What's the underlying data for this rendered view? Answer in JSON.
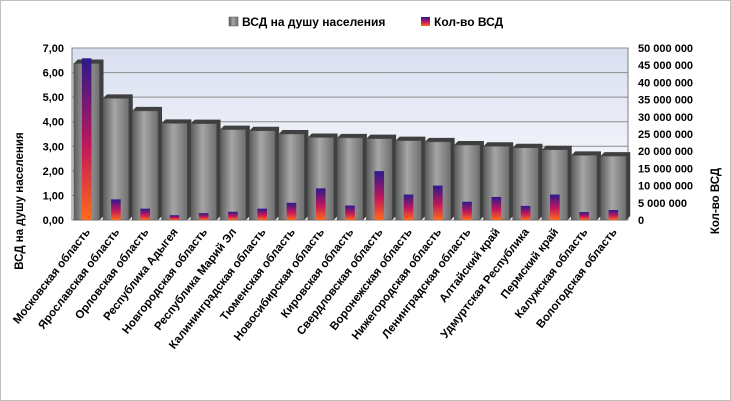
{
  "chart_data": {
    "type": "bar",
    "categories": [
      "Московская область",
      "Ярославская область",
      "Орловская область",
      "Республика Адыгея",
      "Новгородская область",
      "Республика Марий Эл",
      "Калининградская область",
      "Тюменская область",
      "Новосибирская область",
      "Кировская область",
      "Свердловская область",
      "Воронежская область",
      "Нижегородская область",
      "Ленинградская область",
      "Алтайский край",
      "Удмуртская Республика",
      "Пермский край",
      "Калужская область",
      "Вологодская область"
    ],
    "series": [
      {
        "name": "ВСД на душу населения",
        "axis": "left",
        "color": "#808080",
        "values": [
          6.37,
          4.95,
          4.44,
          3.93,
          3.92,
          3.68,
          3.63,
          3.5,
          3.36,
          3.34,
          3.31,
          3.23,
          3.18,
          3.05,
          3.0,
          2.94,
          2.86,
          2.63,
          2.6
        ]
      },
      {
        "name": "Кол-во ВСД",
        "axis": "right",
        "color": "#3b1e8f",
        "values": [
          47000000,
          6000000,
          3300000,
          1400000,
          2000000,
          2400000,
          3300000,
          5000000,
          9200000,
          4200000,
          14200000,
          7400000,
          10000000,
          5300000,
          6700000,
          4100000,
          7400000,
          2300000,
          2900000
        ]
      }
    ],
    "ylabel": "ВСД на душу населения",
    "y2label": "Кол-во ВСД",
    "ylim": [
      0,
      7
    ],
    "y2lim": [
      0,
      50000000
    ],
    "yticks": [
      "0,00",
      "1,00",
      "2,00",
      "3,00",
      "4,00",
      "5,00",
      "6,00",
      "7,00"
    ],
    "y2ticks": [
      "0",
      "5 000 000",
      "10 000 000",
      "15 000 000",
      "20 000 000",
      "25 000 000",
      "30 000 000",
      "35 000 000",
      "40 000 000",
      "45 000 000",
      "50 000 000"
    ],
    "legend_position": "top",
    "grid": true
  }
}
